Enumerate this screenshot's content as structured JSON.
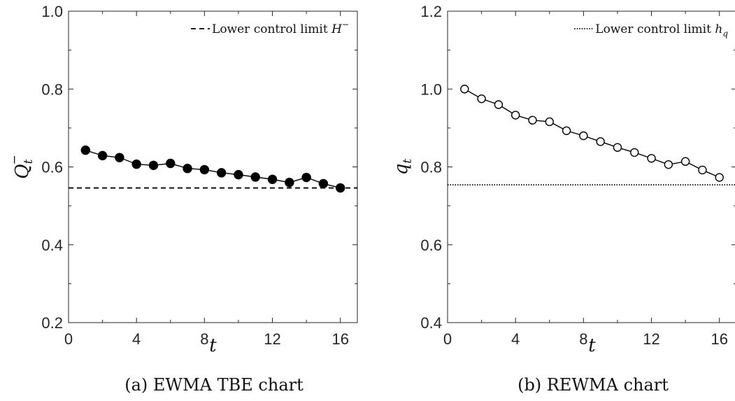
{
  "chart_data": [
    {
      "type": "line",
      "caption": "(a) EWMA TBE chart",
      "xlabel": "t",
      "ylabel": "Q",
      "ylabel_sub": "t",
      "ylabel_sup": "−",
      "xlim": [
        0,
        17
      ],
      "ylim": [
        0.2,
        1.0
      ],
      "xticks": [
        0,
        4,
        8,
        12,
        16
      ],
      "xtick_labels": [
        "0",
        "4",
        "8",
        "12",
        "16"
      ],
      "yticks": [
        0.2,
        0.4,
        0.6,
        0.8,
        1.0
      ],
      "ytick_labels": [
        "0.2",
        "0.4",
        "0.6",
        "0.8",
        "1.0"
      ],
      "grid": false,
      "legend_position": "top-right",
      "series": [
        {
          "marker": "filled-circle",
          "color": "#000000",
          "x": [
            1,
            2,
            3,
            4,
            5,
            6,
            7,
            8,
            9,
            10,
            11,
            12,
            13,
            14,
            15,
            16
          ],
          "y": [
            0.643,
            0.629,
            0.624,
            0.607,
            0.604,
            0.609,
            0.596,
            0.593,
            0.585,
            0.58,
            0.574,
            0.568,
            0.56,
            0.573,
            0.557,
            0.546
          ]
        }
      ],
      "reference_line": {
        "y": 0.546,
        "style": "dashed",
        "legend": "Lower control limit ",
        "legend_math": "H",
        "legend_math_sup": "−"
      }
    },
    {
      "type": "line",
      "caption": "(b) REWMA chart",
      "xlabel": "t",
      "ylabel": "q",
      "ylabel_sub": "t",
      "ylabel_sup": "",
      "xlim": [
        0,
        17
      ],
      "ylim": [
        0.4,
        1.2
      ],
      "xticks": [
        0,
        4,
        8,
        12,
        16
      ],
      "xtick_labels": [
        "0",
        "4",
        "8",
        "12",
        "16"
      ],
      "yticks": [
        0.4,
        0.6,
        0.8,
        1.0,
        1.2
      ],
      "ytick_labels": [
        "0.4",
        "0.6",
        "0.8",
        "1.0",
        "1.2"
      ],
      "grid": false,
      "legend_position": "top-right",
      "series": [
        {
          "marker": "open-circle",
          "color": "#000000",
          "x": [
            1,
            2,
            3,
            4,
            5,
            6,
            7,
            8,
            9,
            10,
            11,
            12,
            13,
            14,
            15,
            16
          ],
          "y": [
            1.0,
            0.975,
            0.96,
            0.933,
            0.92,
            0.916,
            0.893,
            0.88,
            0.865,
            0.85,
            0.837,
            0.822,
            0.806,
            0.814,
            0.792,
            0.773
          ]
        }
      ],
      "reference_line": {
        "y": 0.754,
        "style": "dotted",
        "legend": "Lower control limit ",
        "legend_math": "h",
        "legend_math_sub": "q"
      }
    }
  ]
}
